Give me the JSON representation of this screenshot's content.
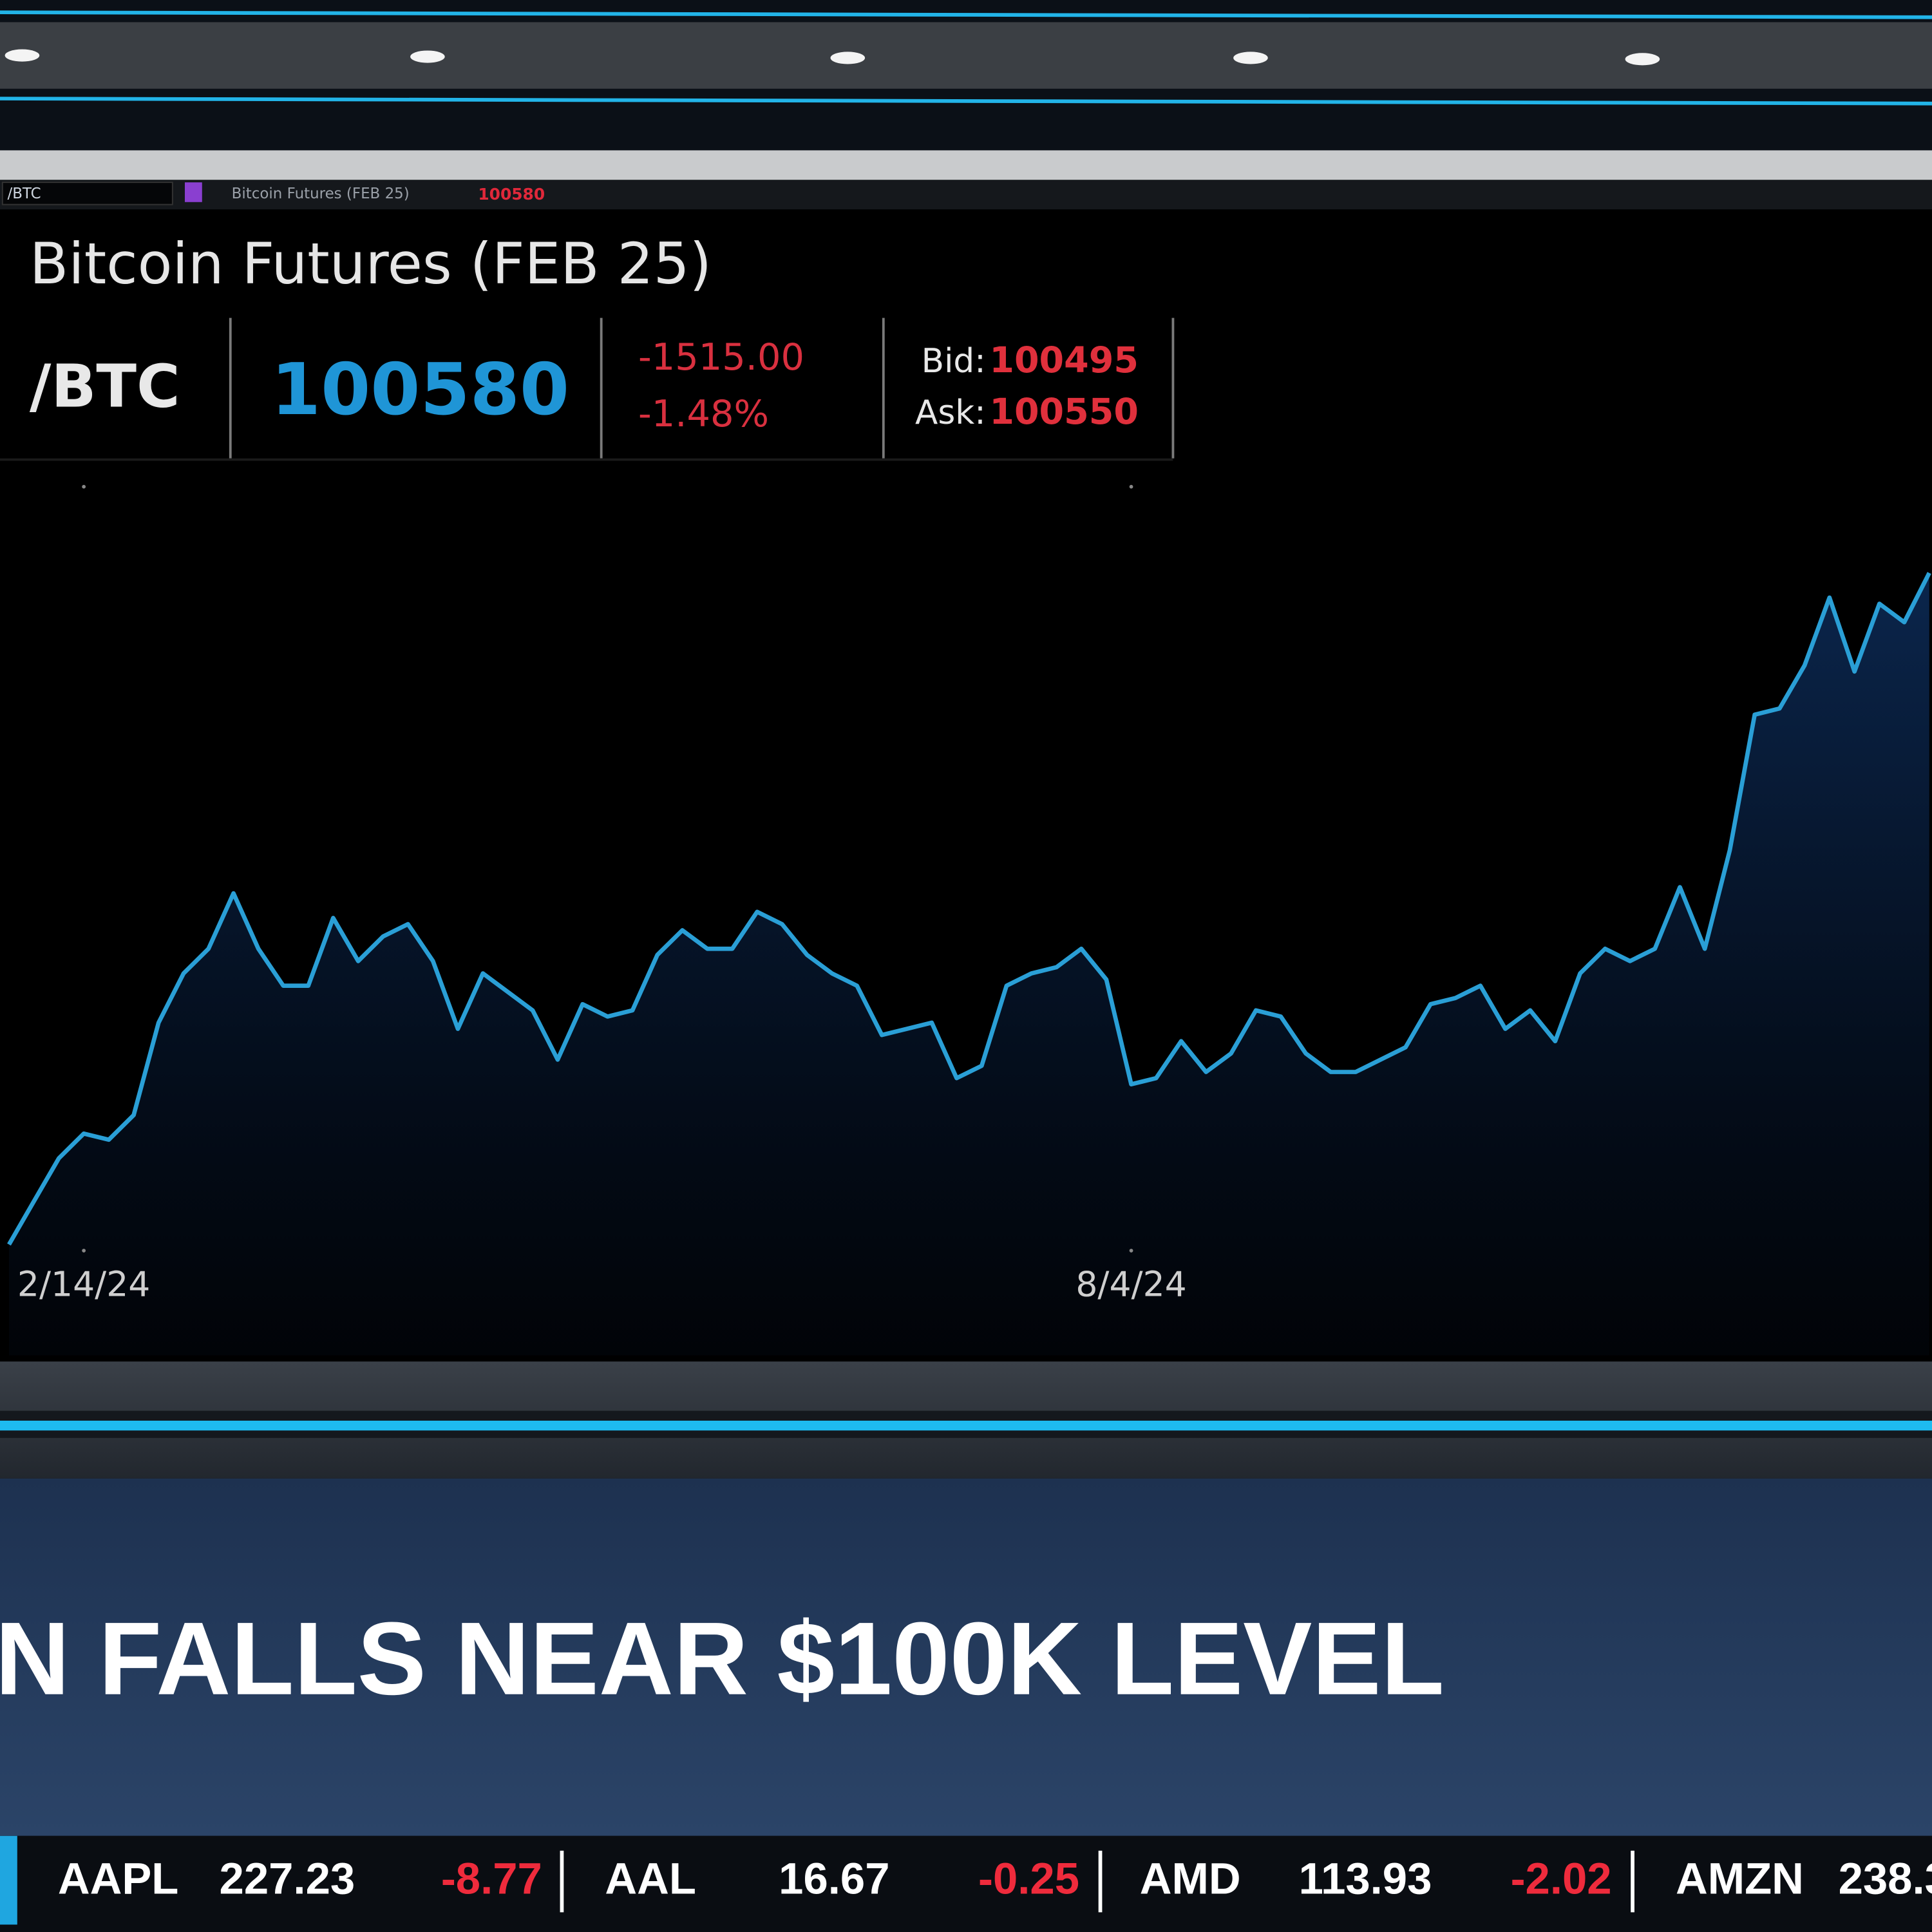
{
  "window": {
    "symbol": "/BTC",
    "description": "Bitcoin Futures (FEB 25)",
    "last": "100580"
  },
  "quote": {
    "title": "Bitcoin Futures (FEB 25)",
    "symbol": "/BTC",
    "last": "100580",
    "net_change": "-1515.00",
    "percent_change": "-1.48%",
    "bid_label": "Bid:",
    "bid": "100495",
    "ask_label": "Ask:",
    "ask": "100550"
  },
  "chart_data": {
    "type": "line",
    "categories": [
      null,
      null,
      null,
      "2/14/24",
      null,
      null,
      null,
      null,
      null,
      null,
      null,
      null,
      null,
      null,
      null,
      null,
      null,
      null,
      null,
      null,
      null,
      null,
      null,
      null,
      null,
      null,
      null,
      null,
      null,
      null,
      null,
      null,
      null,
      null,
      null,
      null,
      null,
      null,
      null,
      null,
      null,
      null,
      null,
      null,
      null,
      "8/4/24",
      null,
      null,
      null,
      null,
      null,
      null,
      null,
      null,
      null,
      null,
      null,
      null,
      null,
      null,
      null,
      null,
      null,
      null,
      null,
      null,
      null,
      null,
      null,
      null,
      null,
      null,
      null,
      null,
      null,
      null,
      null,
      null
    ],
    "series": [
      {
        "color": "#2a9fd6",
        "values": [
          50000,
          53500,
          57000,
          59000,
          58500,
          60500,
          68000,
          72000,
          74000,
          78500,
          74000,
          71000,
          71000,
          76500,
          73000,
          75000,
          76000,
          73000,
          67500,
          72000,
          70500,
          69000,
          65000,
          69500,
          68500,
          69000,
          73500,
          75500,
          74000,
          74000,
          77000,
          76000,
          73500,
          72000,
          71000,
          67000,
          67500,
          68000,
          63500,
          64500,
          71000,
          72000,
          72500,
          74000,
          71500,
          63000,
          63500,
          66500,
          64000,
          65500,
          69000,
          68500,
          65500,
          64000,
          64000,
          65000,
          66000,
          69500,
          70000,
          71000,
          67500,
          69000,
          66500,
          72000,
          74000,
          73000,
          74000,
          79000,
          74000,
          82000,
          93000,
          93500,
          97000,
          102500,
          96500,
          102000,
          100500,
          104500
        ]
      }
    ]
  },
  "headline": "N FALLS NEAR $100K LEVEL",
  "ticker": [
    {
      "symbol": "AAPL",
      "price": "227.23",
      "change": "-8.77"
    },
    {
      "symbol": "AAL",
      "price": "16.67",
      "change": "-0.25"
    },
    {
      "symbol": "AMD",
      "price": "113.93",
      "change": "-2.02"
    },
    {
      "symbol": "AMZN",
      "price": "238.3"
    }
  ]
}
